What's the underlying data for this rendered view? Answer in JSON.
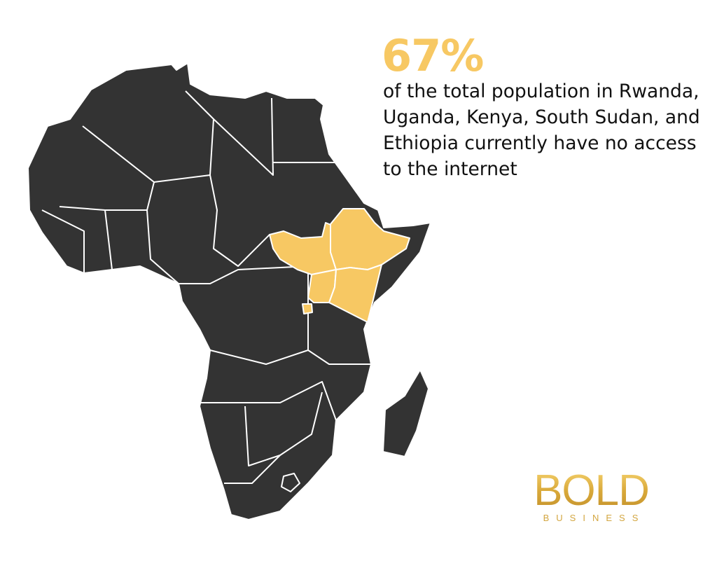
{
  "headline": {
    "stat": "67%",
    "description": "of the total population in Rwanda, Uganda, Kenya, South Sudan, and Ethiopia currently have no access to the internet"
  },
  "map": {
    "region": "Africa",
    "highlighted_countries": [
      "Rwanda",
      "Uganda",
      "Kenya",
      "South Sudan",
      "Ethiopia"
    ],
    "colors": {
      "land": "#333333",
      "highlight": "#f7c863",
      "border": "#ffffff"
    }
  },
  "logo": {
    "main": "BOLD",
    "sub": "BUSINESS",
    "color": "#d9a93a"
  },
  "colors": {
    "accent": "#f7c863",
    "text": "#111111"
  }
}
